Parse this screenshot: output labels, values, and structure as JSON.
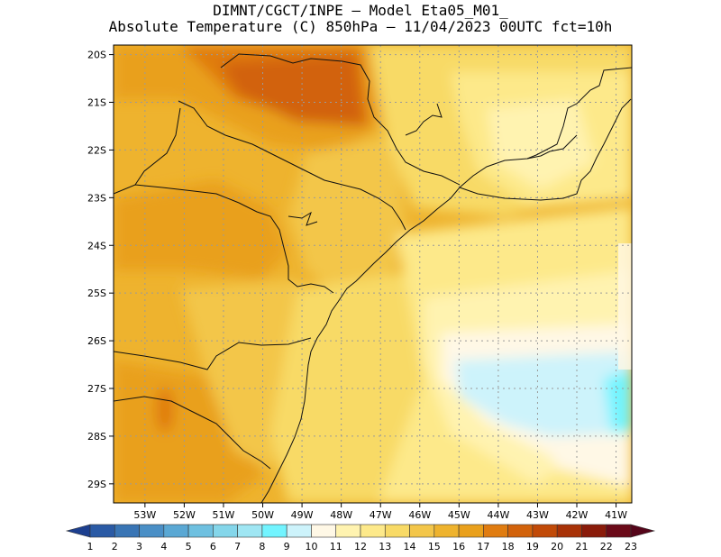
{
  "header": {
    "line1": "DIMNT/CGCT/INPE –  Model Eta05_M01_",
    "line2": "Absolute Temperature (C) 850hPa –  11/04/2023 00UTC fct=10h"
  },
  "map": {
    "lat_ticks": [
      "20S",
      "21S",
      "22S",
      "23S",
      "24S",
      "25S",
      "26S",
      "27S",
      "28S",
      "29S"
    ],
    "lon_ticks": [
      "53W",
      "52W",
      "51W",
      "50W",
      "49W",
      "48W",
      "47W",
      "46W",
      "45W",
      "44W",
      "43W",
      "42W",
      "41W"
    ],
    "lat_range": [
      -29.4,
      -19.8
    ],
    "lon_range": [
      -53.8,
      -40.6
    ],
    "gridlines": true
  },
  "colorbar": {
    "labels": [
      "1",
      "2",
      "3",
      "4",
      "5",
      "6",
      "7",
      "8",
      "9",
      "10",
      "11",
      "12",
      "13",
      "14",
      "15",
      "16",
      "17",
      "18",
      "19",
      "20",
      "21",
      "22",
      "23"
    ],
    "colors": [
      "#1c3f8f",
      "#2a5aa5",
      "#3975b5",
      "#4a8fc6",
      "#5aa8d4",
      "#6ec0e0",
      "#84d6ea",
      "#9fe6f3",
      "#72f4ff",
      "#cdf3fb",
      "#fff8e6",
      "#fff3b0",
      "#fde98a",
      "#f8da66",
      "#f3c64a",
      "#eeb32e",
      "#e9a01c",
      "#e07c10",
      "#d2620b",
      "#c14a08",
      "#a83207",
      "#8a1b0a",
      "#6b0a18",
      "#55051a"
    ]
  }
}
